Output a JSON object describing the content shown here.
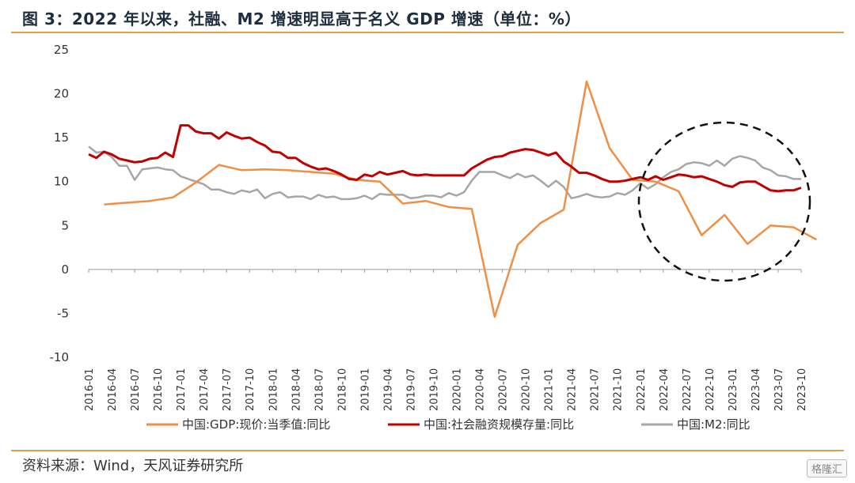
{
  "header": {
    "title": "图 3：2022 年以来，社融、M2 增速明显高于名义 GDP 增速（单位：%）"
  },
  "footer": {
    "source": "资料来源：Wind，天风证券研究所",
    "watermark": "格隆汇"
  },
  "colors": {
    "gdp": "#ee8f45",
    "tsf": "#c00000",
    "m2": "#a6a6a6",
    "accent_rule": "#e0a050"
  },
  "chart_data": {
    "type": "line",
    "title": "",
    "xlabel": "",
    "ylabel": "",
    "ylim": [
      -10,
      25
    ],
    "yticks": [
      -10,
      -5,
      0,
      5,
      10,
      15,
      20,
      25
    ],
    "x_start": "2016-01",
    "x_end": "2023-10",
    "xticks": [
      "2016-01",
      "2016-04",
      "2016-07",
      "2016-10",
      "2017-01",
      "2017-04",
      "2017-07",
      "2017-10",
      "2018-01",
      "2018-04",
      "2018-07",
      "2018-10",
      "2019-01",
      "2019-04",
      "2019-07",
      "2019-10",
      "2020-01",
      "2020-04",
      "2020-07",
      "2020-10",
      "2021-01",
      "2021-04",
      "2021-07",
      "2021-10",
      "2022-01",
      "2022-04",
      "2022-07",
      "2022-10",
      "2023-01",
      "2023-04",
      "2023-07",
      "2023-10"
    ],
    "legend_position": "bottom",
    "annotation": "dashed circle highlighting 2022-01 to 2023-10",
    "series": [
      {
        "name": "中国:GDP:现价:当季值:同比",
        "key": "gdp",
        "points": [
          [
            "2016-03",
            7.4
          ],
          [
            "2016-06",
            7.6
          ],
          [
            "2016-09",
            7.8
          ],
          [
            "2016-12",
            8.2
          ],
          [
            "2017-03",
            9.9
          ],
          [
            "2017-06",
            11.9
          ],
          [
            "2017-09",
            11.3
          ],
          [
            "2017-12",
            11.4
          ],
          [
            "2018-03",
            11.3
          ],
          [
            "2018-06",
            11.1
          ],
          [
            "2018-09",
            10.9
          ],
          [
            "2018-12",
            10.2
          ],
          [
            "2019-03",
            10.0
          ],
          [
            "2019-06",
            7.5
          ],
          [
            "2019-09",
            7.8
          ],
          [
            "2019-12",
            7.1
          ],
          [
            "2020-03",
            6.9
          ],
          [
            "2020-06",
            -5.4
          ],
          [
            "2020-09",
            2.8
          ],
          [
            "2020-12",
            5.3
          ],
          [
            "2021-03",
            6.8
          ],
          [
            "2021-06",
            21.4
          ],
          [
            "2021-09",
            13.8
          ],
          [
            "2021-12",
            10.2
          ],
          [
            "2022-03",
            10.0
          ],
          [
            "2022-06",
            8.9
          ],
          [
            "2022-09",
            3.9
          ],
          [
            "2022-12",
            6.2
          ],
          [
            "2023-03",
            2.9
          ],
          [
            "2023-06",
            5.0
          ],
          [
            "2023-09",
            4.8
          ],
          [
            "2023-12",
            3.4
          ]
        ]
      },
      {
        "name": "中国:社会融资规模存量:同比",
        "key": "tsf",
        "points": [
          [
            "2016-01",
            13.1
          ],
          [
            "2016-02",
            12.7
          ],
          [
            "2016-03",
            13.4
          ],
          [
            "2016-04",
            13.1
          ],
          [
            "2016-05",
            12.6
          ],
          [
            "2016-06",
            12.4
          ],
          [
            "2016-07",
            12.2
          ],
          [
            "2016-08",
            12.3
          ],
          [
            "2016-09",
            12.6
          ],
          [
            "2016-10",
            12.7
          ],
          [
            "2016-11",
            13.3
          ],
          [
            "2016-12",
            12.8
          ],
          [
            "2017-01",
            16.4
          ],
          [
            "2017-02",
            16.4
          ],
          [
            "2017-03",
            15.7
          ],
          [
            "2017-04",
            15.5
          ],
          [
            "2017-05",
            15.5
          ],
          [
            "2017-06",
            14.9
          ],
          [
            "2017-07",
            15.6
          ],
          [
            "2017-08",
            15.2
          ],
          [
            "2017-09",
            14.9
          ],
          [
            "2017-10",
            15.0
          ],
          [
            "2017-11",
            14.5
          ],
          [
            "2017-12",
            14.1
          ],
          [
            "2018-01",
            13.4
          ],
          [
            "2018-02",
            13.3
          ],
          [
            "2018-03",
            12.7
          ],
          [
            "2018-04",
            12.7
          ],
          [
            "2018-05",
            12.1
          ],
          [
            "2018-06",
            11.7
          ],
          [
            "2018-07",
            11.4
          ],
          [
            "2018-08",
            11.5
          ],
          [
            "2018-09",
            11.2
          ],
          [
            "2018-10",
            10.8
          ],
          [
            "2018-11",
            10.3
          ],
          [
            "2018-12",
            10.2
          ],
          [
            "2019-01",
            10.8
          ],
          [
            "2019-02",
            10.6
          ],
          [
            "2019-03",
            11.1
          ],
          [
            "2019-04",
            10.8
          ],
          [
            "2019-05",
            11.0
          ],
          [
            "2019-06",
            11.2
          ],
          [
            "2019-07",
            10.8
          ],
          [
            "2019-08",
            10.7
          ],
          [
            "2019-09",
            10.8
          ],
          [
            "2019-10",
            10.7
          ],
          [
            "2019-11",
            10.7
          ],
          [
            "2019-12",
            10.7
          ],
          [
            "2020-01",
            10.7
          ],
          [
            "2020-02",
            10.7
          ],
          [
            "2020-03",
            11.5
          ],
          [
            "2020-04",
            12.0
          ],
          [
            "2020-05",
            12.5
          ],
          [
            "2020-06",
            12.8
          ],
          [
            "2020-07",
            12.9
          ],
          [
            "2020-08",
            13.3
          ],
          [
            "2020-09",
            13.5
          ],
          [
            "2020-10",
            13.7
          ],
          [
            "2020-11",
            13.6
          ],
          [
            "2020-12",
            13.3
          ],
          [
            "2021-01",
            13.0
          ],
          [
            "2021-02",
            13.3
          ],
          [
            "2021-03",
            12.3
          ],
          [
            "2021-04",
            11.7
          ],
          [
            "2021-05",
            11.0
          ],
          [
            "2021-06",
            11.0
          ],
          [
            "2021-07",
            10.7
          ],
          [
            "2021-08",
            10.3
          ],
          [
            "2021-09",
            10.0
          ],
          [
            "2021-10",
            10.0
          ],
          [
            "2021-11",
            10.1
          ],
          [
            "2021-12",
            10.3
          ],
          [
            "2022-01",
            10.5
          ],
          [
            "2022-02",
            10.2
          ],
          [
            "2022-03",
            10.6
          ],
          [
            "2022-04",
            10.2
          ],
          [
            "2022-05",
            10.5
          ],
          [
            "2022-06",
            10.8
          ],
          [
            "2022-07",
            10.7
          ],
          [
            "2022-08",
            10.5
          ],
          [
            "2022-09",
            10.6
          ],
          [
            "2022-10",
            10.3
          ],
          [
            "2022-11",
            10.0
          ],
          [
            "2022-12",
            9.6
          ],
          [
            "2023-01",
            9.4
          ],
          [
            "2023-02",
            9.9
          ],
          [
            "2023-03",
            10.0
          ],
          [
            "2023-04",
            10.0
          ],
          [
            "2023-05",
            9.5
          ],
          [
            "2023-06",
            9.0
          ],
          [
            "2023-07",
            8.9
          ],
          [
            "2023-08",
            9.0
          ],
          [
            "2023-09",
            9.0
          ],
          [
            "2023-10",
            9.3
          ]
        ]
      },
      {
        "name": "中国:M2:同比",
        "key": "m2",
        "points": [
          [
            "2016-01",
            14.0
          ],
          [
            "2016-02",
            13.3
          ],
          [
            "2016-03",
            13.4
          ],
          [
            "2016-04",
            12.8
          ],
          [
            "2016-05",
            11.8
          ],
          [
            "2016-06",
            11.8
          ],
          [
            "2016-07",
            10.2
          ],
          [
            "2016-08",
            11.4
          ],
          [
            "2016-09",
            11.5
          ],
          [
            "2016-10",
            11.6
          ],
          [
            "2016-11",
            11.4
          ],
          [
            "2016-12",
            11.3
          ],
          [
            "2017-01",
            10.6
          ],
          [
            "2017-02",
            10.3
          ],
          [
            "2017-03",
            10.0
          ],
          [
            "2017-04",
            9.7
          ],
          [
            "2017-05",
            9.1
          ],
          [
            "2017-06",
            9.1
          ],
          [
            "2017-07",
            8.8
          ],
          [
            "2017-08",
            8.6
          ],
          [
            "2017-09",
            9.0
          ],
          [
            "2017-10",
            8.8
          ],
          [
            "2017-11",
            9.1
          ],
          [
            "2017-12",
            8.1
          ],
          [
            "2018-01",
            8.6
          ],
          [
            "2018-02",
            8.8
          ],
          [
            "2018-03",
            8.2
          ],
          [
            "2018-04",
            8.3
          ],
          [
            "2018-05",
            8.3
          ],
          [
            "2018-06",
            8.0
          ],
          [
            "2018-07",
            8.5
          ],
          [
            "2018-08",
            8.2
          ],
          [
            "2018-09",
            8.3
          ],
          [
            "2018-10",
            8.0
          ],
          [
            "2018-11",
            8.0
          ],
          [
            "2018-12",
            8.1
          ],
          [
            "2019-01",
            8.4
          ],
          [
            "2019-02",
            8.0
          ],
          [
            "2019-03",
            8.6
          ],
          [
            "2019-04",
            8.5
          ],
          [
            "2019-05",
            8.5
          ],
          [
            "2019-06",
            8.5
          ],
          [
            "2019-07",
            8.1
          ],
          [
            "2019-08",
            8.2
          ],
          [
            "2019-09",
            8.4
          ],
          [
            "2019-10",
            8.4
          ],
          [
            "2019-11",
            8.2
          ],
          [
            "2019-12",
            8.7
          ],
          [
            "2020-01",
            8.4
          ],
          [
            "2020-02",
            8.8
          ],
          [
            "2020-03",
            10.1
          ],
          [
            "2020-04",
            11.1
          ],
          [
            "2020-05",
            11.1
          ],
          [
            "2020-06",
            11.1
          ],
          [
            "2020-07",
            10.7
          ],
          [
            "2020-08",
            10.4
          ],
          [
            "2020-09",
            10.9
          ],
          [
            "2020-10",
            10.5
          ],
          [
            "2020-11",
            10.7
          ],
          [
            "2020-12",
            10.1
          ],
          [
            "2021-01",
            9.4
          ],
          [
            "2021-02",
            10.1
          ],
          [
            "2021-03",
            9.4
          ],
          [
            "2021-04",
            8.1
          ],
          [
            "2021-05",
            8.3
          ],
          [
            "2021-06",
            8.6
          ],
          [
            "2021-07",
            8.3
          ],
          [
            "2021-08",
            8.2
          ],
          [
            "2021-09",
            8.3
          ],
          [
            "2021-10",
            8.7
          ],
          [
            "2021-11",
            8.5
          ],
          [
            "2021-12",
            9.0
          ],
          [
            "2022-01",
            9.8
          ],
          [
            "2022-02",
            9.2
          ],
          [
            "2022-03",
            9.7
          ],
          [
            "2022-04",
            10.5
          ],
          [
            "2022-05",
            11.1
          ],
          [
            "2022-06",
            11.4
          ],
          [
            "2022-07",
            12.0
          ],
          [
            "2022-08",
            12.2
          ],
          [
            "2022-09",
            12.1
          ],
          [
            "2022-10",
            11.8
          ],
          [
            "2022-11",
            12.4
          ],
          [
            "2022-12",
            11.8
          ],
          [
            "2023-01",
            12.6
          ],
          [
            "2023-02",
            12.9
          ],
          [
            "2023-03",
            12.7
          ],
          [
            "2023-04",
            12.4
          ],
          [
            "2023-05",
            11.6
          ],
          [
            "2023-06",
            11.3
          ],
          [
            "2023-07",
            10.7
          ],
          [
            "2023-08",
            10.6
          ],
          [
            "2023-09",
            10.3
          ],
          [
            "2023-10",
            10.3
          ]
        ]
      }
    ]
  }
}
